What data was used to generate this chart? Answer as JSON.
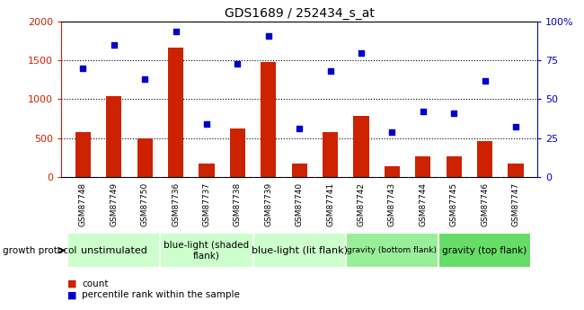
{
  "title": "GDS1689 / 252434_s_at",
  "samples": [
    "GSM87748",
    "GSM87749",
    "GSM87750",
    "GSM87736",
    "GSM87737",
    "GSM87738",
    "GSM87739",
    "GSM87740",
    "GSM87741",
    "GSM87742",
    "GSM87743",
    "GSM87744",
    "GSM87745",
    "GSM87746",
    "GSM87747"
  ],
  "counts": [
    580,
    1040,
    500,
    1660,
    175,
    620,
    1480,
    165,
    570,
    790,
    140,
    265,
    265,
    460,
    170
  ],
  "percentiles": [
    70,
    85,
    63,
    94,
    34,
    73,
    91,
    31,
    68,
    80,
    29,
    42,
    41,
    62,
    32
  ],
  "bar_color": "#cc2200",
  "scatter_color": "#0000cc",
  "ylim_left": [
    0,
    2000
  ],
  "ylim_right": [
    0,
    100
  ],
  "yticks_left": [
    0,
    500,
    1000,
    1500,
    2000
  ],
  "yticks_right": [
    0,
    25,
    50,
    75,
    100
  ],
  "group_starts": [
    0,
    3,
    6,
    9,
    12
  ],
  "group_ends": [
    3,
    6,
    9,
    12,
    15
  ],
  "group_labels": [
    "unstimulated",
    "blue-light (shaded\nflank)",
    "blue-light (lit flank)",
    "gravity (bottom flank)",
    "gravity (top flank)"
  ],
  "group_colors": [
    "#ccffcc",
    "#ccffcc",
    "#ccffcc",
    "#99ee99",
    "#66dd66"
  ],
  "group_fontsizes": [
    8,
    7.5,
    8,
    6.5,
    7.5
  ],
  "sample_bg": "#cccccc",
  "protocol_label": "growth protocol",
  "legend_count": "count",
  "legend_pct": "percentile rank within the sample",
  "legend_count_color": "#cc2200",
  "legend_pct_color": "#0000cc"
}
